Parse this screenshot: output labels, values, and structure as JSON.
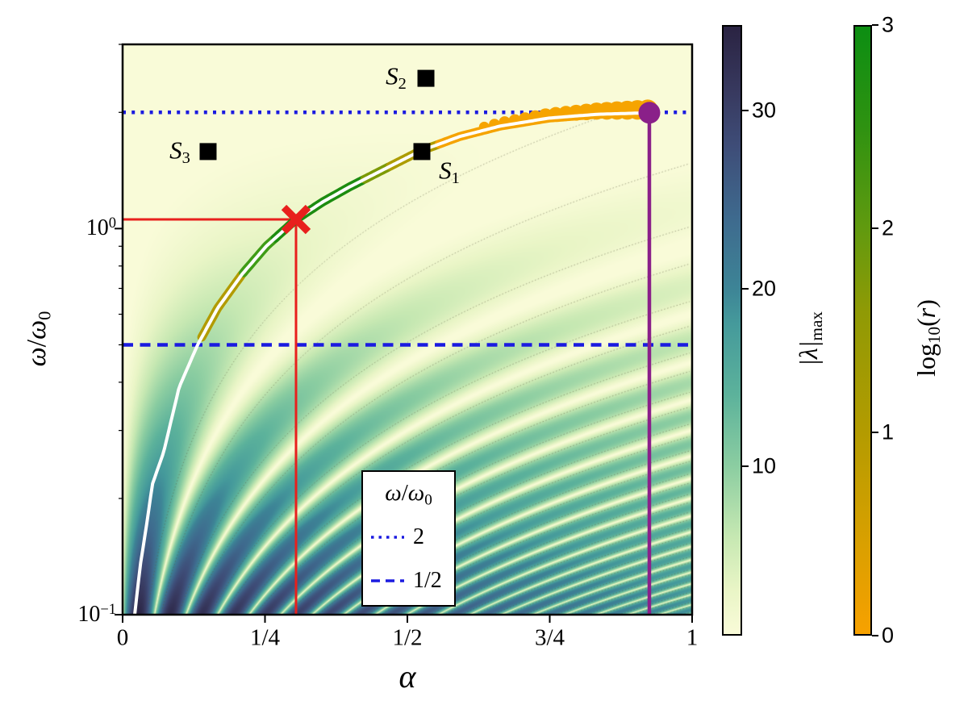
{
  "chart_data": {
    "type": "heatmap",
    "x_axis": {
      "label": "α",
      "range": [
        0,
        1
      ],
      "scale": "linear",
      "ticks": [
        {
          "value": 0,
          "label": "0"
        },
        {
          "value": 0.25,
          "label": "1/4"
        },
        {
          "value": 0.5,
          "label": "1/2"
        },
        {
          "value": 0.75,
          "label": "3/4"
        },
        {
          "value": 1,
          "label": "1"
        }
      ]
    },
    "y_axis": {
      "label_parts": {
        "num": "ω",
        "slash": "/",
        "den": "ω",
        "den_sub": "0"
      },
      "range": [
        0.1,
        3.0
      ],
      "scale": "log",
      "ticks": [
        {
          "value": 0.1,
          "base": "10",
          "exp": "−1"
        },
        {
          "value": 1,
          "base": "10",
          "exp": "0"
        }
      ],
      "minor_ticks": [
        0.2,
        0.3,
        0.4,
        0.5,
        0.6,
        0.7,
        0.8,
        0.9,
        2,
        3
      ]
    },
    "heatmap": {
      "description": "parametric-resonance tongues of |lambda|max over (alpha, omega/omega0)",
      "value_min": 0.5,
      "value_max": 34.8,
      "tongue_slope_c": 1.8,
      "amplitude": 35,
      "alpha_fade": 0.45,
      "gamma_base": 0.55,
      "gamma_slope": 1.3,
      "colormap_stops": [
        [
          0.5,
          "#f9fbd8"
        ],
        [
          3,
          "#e9f5c6"
        ],
        [
          6,
          "#c6e8b2"
        ],
        [
          10,
          "#8bcda1"
        ],
        [
          14,
          "#5cb29b"
        ],
        [
          18,
          "#459a9b"
        ],
        [
          20,
          "#3d8496"
        ],
        [
          24,
          "#3e6a8e"
        ],
        [
          28,
          "#3e4d78"
        ],
        [
          31,
          "#383a60"
        ],
        [
          34.8,
          "#2a2342"
        ]
      ],
      "contours": {
        "n_max": 22,
        "half_width": 0.22,
        "amp_threshold": 0.35,
        "color": "rgba(90,90,65,0.65)",
        "dash": [
          1.5,
          2.5
        ]
      }
    },
    "reference_lines": [
      {
        "id": "omega-2",
        "value": 2,
        "style": "dotted",
        "color": "#1b1be0",
        "label": "2"
      },
      {
        "id": "omega-half",
        "value": 0.5,
        "style": "dashed",
        "color": "#1b1be0",
        "label": "1/2"
      }
    ],
    "guide_lines": [
      {
        "id": "red-crosshair",
        "alpha": 0.3045,
        "omega": 1.056,
        "color": "#e8201d"
      },
      {
        "id": "purple-drop",
        "alpha": 0.9249,
        "omega": 1.995,
        "color": "#8a2089"
      }
    ],
    "legend": {
      "title_parts": {
        "num": "ω",
        "slash": "/",
        "den": "ω",
        "den_sub": "0"
      },
      "entries": [
        {
          "style": "dotted",
          "label": "2",
          "color": "#1b1be0"
        },
        {
          "style": "dashed",
          "label": "1/2",
          "color": "#1b1be0"
        }
      ]
    },
    "main_curve": {
      "color": "#ffffff",
      "points": [
        [
          0.0212,
          0.1
        ],
        [
          0.0312,
          0.135
        ],
        [
          0.0411,
          0.167
        ],
        [
          0.0524,
          0.218
        ],
        [
          0.0722,
          0.264
        ],
        [
          0.0992,
          0.388
        ],
        [
          0.1317,
          0.5
        ],
        [
          0.1671,
          0.623
        ],
        [
          0.2096,
          0.761
        ],
        [
          0.2521,
          0.9
        ],
        [
          0.3045,
          1.056
        ],
        [
          0.3513,
          1.172
        ],
        [
          0.3966,
          1.278
        ],
        [
          0.4504,
          1.403
        ],
        [
          0.5212,
          1.585
        ],
        [
          0.5921,
          1.732
        ],
        [
          0.6629,
          1.843
        ],
        [
          0.7479,
          1.932
        ],
        [
          0.8329,
          1.977
        ],
        [
          0.9249,
          1.995
        ]
      ]
    },
    "colored_segments": [
      {
        "alpha": [
          0.139,
          0.212
        ],
        "color": "#b29b00"
      },
      {
        "alpha": [
          0.212,
          0.268
        ],
        "color": "#3f9c16"
      },
      {
        "alpha": [
          0.268,
          0.425
        ],
        "color": "#1c8c10"
      },
      {
        "alpha": [
          0.425,
          0.47
        ],
        "color": "#7c9a05"
      },
      {
        "alpha": [
          0.47,
          0.556
        ],
        "color": "#ad9c00"
      },
      {
        "alpha": [
          0.556,
          0.915
        ],
        "color": "#f5a300"
      }
    ],
    "end_dots": {
      "alpha_start": 0.635,
      "alpha_end": 0.922,
      "count": 17,
      "radius_start": 6.5,
      "radius_end": 12.5,
      "color": "#f6a400"
    },
    "point_markers": [
      {
        "id": "S1",
        "label_s": "S",
        "label_sub": "1",
        "alpha": 0.5255,
        "omega": 1.583,
        "marker": "square",
        "color": "#000000"
      },
      {
        "id": "S2",
        "label_s": "S",
        "label_sub": "2",
        "alpha": 0.5326,
        "omega": 2.45,
        "marker": "square",
        "color": "#000000"
      },
      {
        "id": "S3",
        "label_s": "S",
        "label_sub": "3",
        "alpha": 0.1501,
        "omega": 1.583,
        "marker": "square",
        "color": "#000000"
      },
      {
        "id": "red-cross",
        "alpha": 0.3045,
        "omega": 1.056,
        "marker": "x",
        "color": "#e8201d"
      },
      {
        "id": "purple-dot",
        "alpha": 0.9249,
        "omega": 1.995,
        "marker": "circle",
        "color": "#8a2089"
      }
    ],
    "colorbars": [
      {
        "id": "lambda",
        "label_parts": {
          "pre": "|λ|",
          "sub": "max"
        },
        "vmin": 0.5,
        "vmax": 34.8,
        "ticks": [
          {
            "value": 10,
            "label": "10"
          },
          {
            "value": 20,
            "label": "20"
          },
          {
            "value": 30,
            "label": "30"
          }
        ],
        "gradient_stops": [
          [
            0.5,
            "#f9fbd8"
          ],
          [
            3,
            "#e9f5c6"
          ],
          [
            6,
            "#c6e8b2"
          ],
          [
            10,
            "#8bcda1"
          ],
          [
            14,
            "#5cb29b"
          ],
          [
            18,
            "#459a9b"
          ],
          [
            20,
            "#3d8496"
          ],
          [
            24,
            "#3e6a8e"
          ],
          [
            28,
            "#3e4d78"
          ],
          [
            31,
            "#383a60"
          ],
          [
            34.8,
            "#2a2342"
          ]
        ]
      },
      {
        "id": "logr",
        "label_parts": {
          "fn": "log",
          "sub": "10",
          "arg_open": "(",
          "arg": "r",
          "arg_close": ")"
        },
        "vmin": 0,
        "vmax": 3,
        "ticks": [
          {
            "value": 0,
            "label": "0"
          },
          {
            "value": 1,
            "label": "1"
          },
          {
            "value": 2,
            "label": "2"
          },
          {
            "value": 3,
            "label": "3"
          }
        ],
        "gradient_stops": [
          [
            0,
            "#f7a100"
          ],
          [
            0.6,
            "#cf9f00"
          ],
          [
            1,
            "#b39b00"
          ],
          [
            1.6,
            "#8f9a05"
          ],
          [
            2,
            "#619a0f"
          ],
          [
            2.5,
            "#2f9211"
          ],
          [
            3,
            "#0c8e12"
          ]
        ]
      }
    ]
  }
}
